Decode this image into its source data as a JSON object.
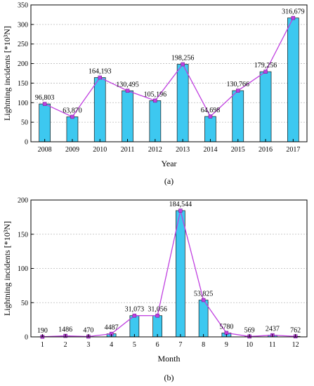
{
  "chart_data": [
    {
      "type": "bar",
      "overlay": "line",
      "panel_label": "(a)",
      "categories": [
        "2008",
        "2009",
        "2010",
        "2011",
        "2012",
        "2013",
        "2014",
        "2015",
        "2016",
        "2017"
      ],
      "values": [
        96.803,
        63.87,
        164.193,
        130.495,
        105.196,
        198.256,
        64.698,
        130.766,
        179.256,
        316.679
      ],
      "data_labels": [
        "96,803",
        "63,870",
        "164,193",
        "130,495",
        "105,196",
        "198,256",
        "64,698",
        "130,766",
        "179,256",
        "316,679"
      ],
      "xlabel": "Year",
      "ylabel": "Lightning incidents [*10³N]",
      "ylim": [
        0,
        350
      ],
      "yticks": [
        "0",
        "50",
        "100",
        "150",
        "200",
        "250",
        "300",
        "350"
      ],
      "grid": true,
      "bar_color": "#3dc8f0",
      "line_color": "#c040e0"
    },
    {
      "type": "bar",
      "overlay": "line",
      "panel_label": "(b)",
      "categories": [
        "1",
        "2",
        "3",
        "4",
        "5",
        "6",
        "7",
        "8",
        "9",
        "10",
        "11",
        "12"
      ],
      "values": [
        0.19,
        1.486,
        0.47,
        4.487,
        31.073,
        31.056,
        184.544,
        53.825,
        5.78,
        0.569,
        2.437,
        0.762
      ],
      "data_labels": [
        "190",
        "1486",
        "470",
        "4487",
        "31,073",
        "31,056",
        "184,544",
        "53,825",
        "5780",
        "569",
        "2437",
        "762"
      ],
      "xlabel": "Month",
      "ylabel": "Lightning incidents [*10³N]",
      "ylim": [
        0,
        200
      ],
      "yticks": [
        "0",
        "50",
        "100",
        "150",
        "200"
      ],
      "grid": true,
      "bar_color": "#3dc8f0",
      "line_color": "#c040e0"
    }
  ]
}
